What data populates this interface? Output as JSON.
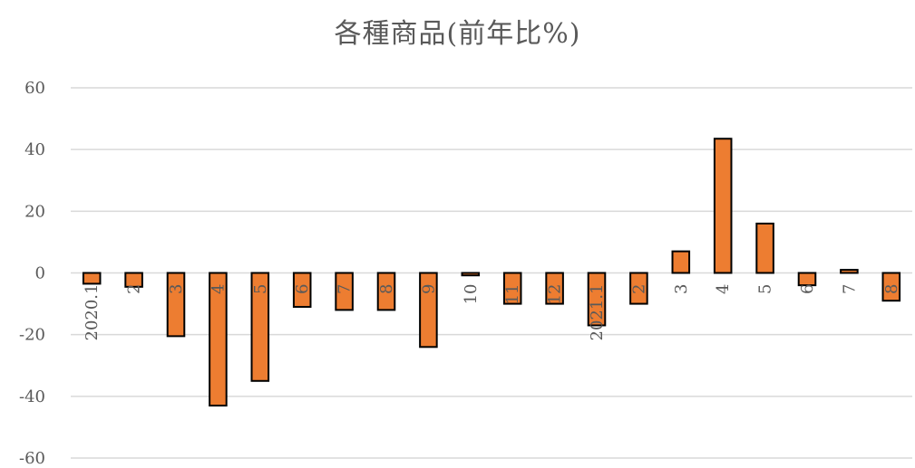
{
  "chart_data": {
    "type": "bar",
    "title": "各種商品(前年比%)",
    "xlabel": "",
    "ylabel": "",
    "categories": [
      "2020.1",
      "2",
      "3",
      "4",
      "5",
      "6",
      "7",
      "8",
      "9",
      "10",
      "11",
      "12",
      "2021.1",
      "2",
      "3",
      "4",
      "5",
      "6",
      "7",
      "8"
    ],
    "values": [
      -3.5,
      -4.5,
      -20.5,
      -43,
      -35,
      -11,
      -12,
      -12,
      -24,
      -0.8,
      -10,
      -10,
      -17,
      -10,
      7,
      43.5,
      16,
      -4,
      1,
      -9
    ],
    "ylim": [
      -60,
      60
    ],
    "yticks": [
      60,
      40,
      20,
      0,
      -20,
      -40,
      -60
    ],
    "grid": true,
    "bar_color": "#ED7D31",
    "bar_edge_color": "#000000",
    "grid_color": "#D9D9D9",
    "text_color": "#595959"
  }
}
